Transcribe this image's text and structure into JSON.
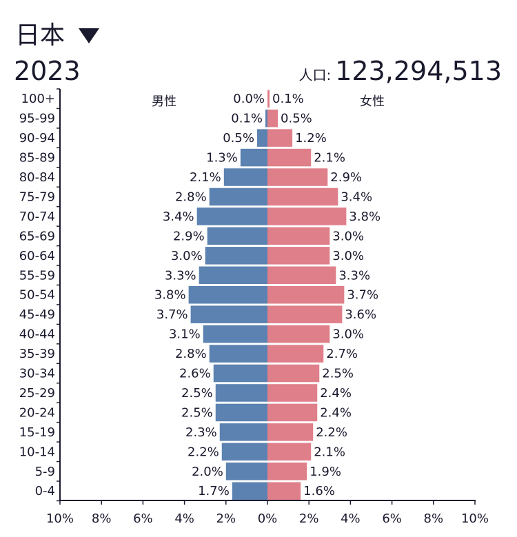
{
  "header": {
    "country": "日本",
    "year": "2023",
    "population_label": "人口:",
    "population_value": "123,294,513"
  },
  "icons": {
    "dropdown": "caret-down-icon"
  },
  "chart_data": {
    "type": "bar",
    "orientation": "horizontal",
    "categories": [
      "100+",
      "95-99",
      "90-94",
      "85-89",
      "80-84",
      "75-79",
      "70-74",
      "65-69",
      "60-64",
      "55-59",
      "50-54",
      "45-49",
      "40-44",
      "35-39",
      "30-34",
      "25-29",
      "20-24",
      "15-19",
      "10-14",
      "5-9",
      "0-4"
    ],
    "series": [
      {
        "name": "男性",
        "color": "#5b82b0",
        "side": "left",
        "values": [
          0.0,
          0.1,
          0.5,
          1.3,
          2.1,
          2.8,
          3.4,
          2.9,
          3.0,
          3.3,
          3.8,
          3.7,
          3.1,
          2.8,
          2.6,
          2.5,
          2.5,
          2.3,
          2.2,
          2.0,
          1.7
        ]
      },
      {
        "name": "女性",
        "color": "#df7f8a",
        "side": "right",
        "values": [
          0.1,
          0.5,
          1.2,
          2.1,
          2.9,
          3.4,
          3.8,
          3.0,
          3.0,
          3.3,
          3.7,
          3.6,
          3.0,
          2.7,
          2.5,
          2.4,
          2.4,
          2.2,
          2.1,
          1.9,
          1.6
        ]
      }
    ],
    "x_ticks": [
      "10%",
      "8%",
      "6%",
      "4%",
      "2%",
      "0%",
      "2%",
      "4%",
      "6%",
      "8%",
      "10%"
    ],
    "xlim": [
      -10,
      10
    ],
    "value_suffix": "%"
  }
}
